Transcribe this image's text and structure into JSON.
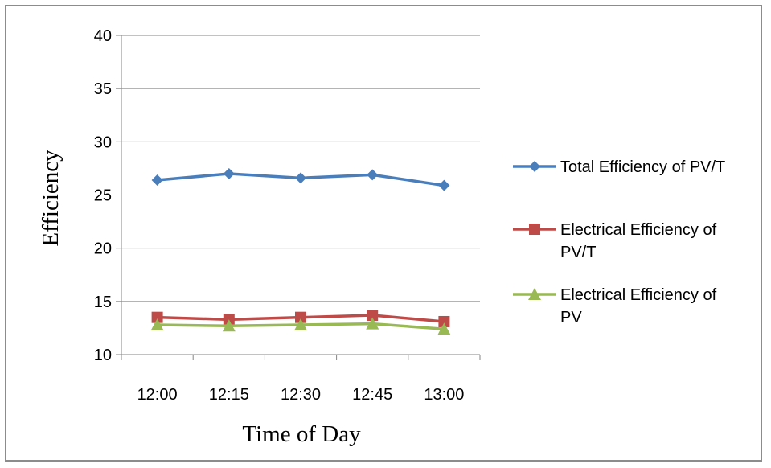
{
  "chart_data": {
    "type": "line",
    "xlabel": "Time of Day",
    "ylabel": "Efficiency",
    "categories": [
      "12:00",
      "12:15",
      "12:30",
      "12:45",
      "13:00"
    ],
    "ylim": [
      10,
      40
    ],
    "yticks": [
      10,
      15,
      20,
      25,
      30,
      35,
      40
    ],
    "grid": true,
    "legend_position": "right",
    "series": [
      {
        "name": "Total Efficiency of PV/T",
        "legend_lines": [
          "Total Efficiency of PV/T"
        ],
        "color": "#4a7ebb",
        "marker": "diamond",
        "values": [
          26.4,
          27.0,
          26.6,
          26.9,
          25.9
        ]
      },
      {
        "name": "Electrical Efficiency of PV/T",
        "legend_lines": [
          "Electrical Efficiency of",
          "PV/T"
        ],
        "color": "#be4b48",
        "marker": "square",
        "values": [
          13.5,
          13.3,
          13.5,
          13.7,
          13.1
        ]
      },
      {
        "name": "Electrical Efficiency of PV",
        "legend_lines": [
          "Electrical Efficiency of",
          "PV"
        ],
        "color": "#98b954",
        "marker": "triangle",
        "values": [
          12.8,
          12.7,
          12.8,
          12.9,
          12.4
        ]
      }
    ]
  }
}
